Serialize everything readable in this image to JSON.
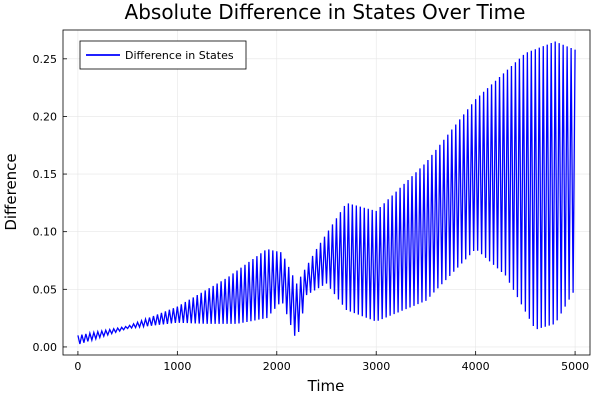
{
  "chart_data": {
    "type": "line",
    "title": "Absolute Difference in States Over Time",
    "xlabel": "Time",
    "ylabel": "Difference",
    "xlim": [
      -150,
      5150
    ],
    "ylim": [
      -0.007,
      0.275
    ],
    "xticks": [
      0,
      1000,
      2000,
      3000,
      4000,
      5000
    ],
    "yticks": [
      0.0,
      0.05,
      0.1,
      0.15,
      0.2,
      0.25
    ],
    "ytick_labels": [
      "0.00",
      "0.05",
      "0.10",
      "0.15",
      "0.20",
      "0.25"
    ],
    "grid": true,
    "legend": {
      "position": "top-left"
    },
    "series": [
      {
        "name": "Difference in States",
        "color": "#0000ff",
        "oscillation_period": 40,
        "x_range": [
          0,
          5000
        ],
        "upper_envelope": {
          "x": [
            0,
            500,
            1000,
            1500,
            1900,
            2050,
            2200,
            2400,
            2700,
            3000,
            3500,
            4000,
            4500,
            4800,
            5000
          ],
          "y": [
            0.01,
            0.018,
            0.035,
            0.06,
            0.085,
            0.082,
            0.055,
            0.085,
            0.125,
            0.118,
            0.16,
            0.215,
            0.255,
            0.265,
            0.258
          ]
        },
        "lower_envelope": {
          "x": [
            0,
            500,
            1000,
            1300,
            1600,
            1900,
            2050,
            2200,
            2300,
            2500,
            2700,
            3000,
            3500,
            4000,
            4300,
            4600,
            4800,
            5000
          ],
          "y": [
            0.002,
            0.016,
            0.021,
            0.02,
            0.02,
            0.025,
            0.04,
            0.005,
            0.045,
            0.055,
            0.032,
            0.022,
            0.04,
            0.085,
            0.062,
            0.015,
            0.02,
            0.05
          ]
        }
      }
    ]
  }
}
